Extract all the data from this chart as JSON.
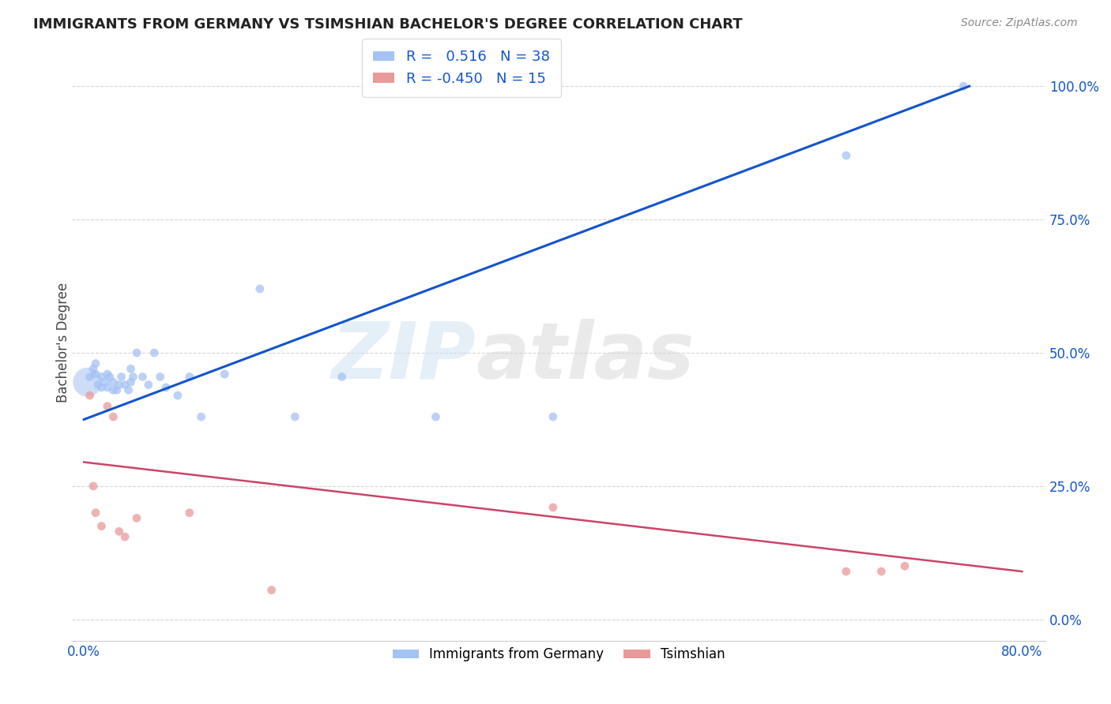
{
  "title": "IMMIGRANTS FROM GERMANY VS TSIMSHIAN BACHELOR'S DEGREE CORRELATION CHART",
  "source": "Source: ZipAtlas.com",
  "ylabel": "Bachelor's Degree",
  "ytick_labels": [
    "0.0%",
    "25.0%",
    "50.0%",
    "75.0%",
    "100.0%"
  ],
  "ytick_values": [
    0.0,
    0.25,
    0.5,
    0.75,
    1.0
  ],
  "xlim": [
    -0.01,
    0.82
  ],
  "ylim": [
    -0.04,
    1.08
  ],
  "blue_color": "#a4c2f4",
  "pink_color": "#ea9999",
  "blue_line_color": "#1155cc",
  "pink_line_color": "#cc4466",
  "watermark_zip": "ZIP",
  "watermark_atlas": "atlas",
  "blue_scatter_x": [
    0.005,
    0.008,
    0.01,
    0.01,
    0.012,
    0.015,
    0.015,
    0.018,
    0.02,
    0.02,
    0.022,
    0.025,
    0.025,
    0.028,
    0.03,
    0.032,
    0.035,
    0.038,
    0.04,
    0.04,
    0.042,
    0.045,
    0.05,
    0.055,
    0.06,
    0.065,
    0.07,
    0.08,
    0.09,
    0.1,
    0.12,
    0.15,
    0.18,
    0.22,
    0.3,
    0.4,
    0.65,
    0.75
  ],
  "blue_scatter_y": [
    0.455,
    0.47,
    0.46,
    0.48,
    0.44,
    0.435,
    0.455,
    0.445,
    0.435,
    0.46,
    0.455,
    0.445,
    0.43,
    0.43,
    0.44,
    0.455,
    0.44,
    0.43,
    0.445,
    0.47,
    0.455,
    0.5,
    0.455,
    0.44,
    0.5,
    0.455,
    0.435,
    0.42,
    0.455,
    0.38,
    0.46,
    0.62,
    0.38,
    0.455,
    0.38,
    0.38,
    0.87,
    1.0
  ],
  "blue_scatter_sizes": [
    60,
    60,
    60,
    60,
    60,
    60,
    60,
    60,
    60,
    60,
    60,
    60,
    60,
    60,
    60,
    60,
    60,
    60,
    60,
    60,
    60,
    60,
    60,
    60,
    60,
    60,
    60,
    60,
    60,
    60,
    60,
    60,
    60,
    60,
    60,
    60,
    60,
    60
  ],
  "blue_large_x": [
    0.003
  ],
  "blue_large_y": [
    0.445
  ],
  "blue_large_size": [
    700
  ],
  "pink_scatter_x": [
    0.005,
    0.008,
    0.01,
    0.015,
    0.02,
    0.025,
    0.03,
    0.035,
    0.045,
    0.09,
    0.16,
    0.4,
    0.65,
    0.68,
    0.7
  ],
  "pink_scatter_y": [
    0.42,
    0.25,
    0.2,
    0.175,
    0.4,
    0.38,
    0.165,
    0.155,
    0.19,
    0.2,
    0.055,
    0.21,
    0.09,
    0.09,
    0.1
  ],
  "pink_scatter_sizes": [
    60,
    60,
    60,
    60,
    60,
    60,
    60,
    60,
    60,
    60,
    60,
    60,
    60,
    60,
    60
  ],
  "blue_line_x": [
    0.0,
    0.755
  ],
  "blue_line_y": [
    0.375,
    1.0
  ],
  "pink_line_x": [
    0.0,
    0.8
  ],
  "pink_line_y": [
    0.295,
    0.09
  ]
}
